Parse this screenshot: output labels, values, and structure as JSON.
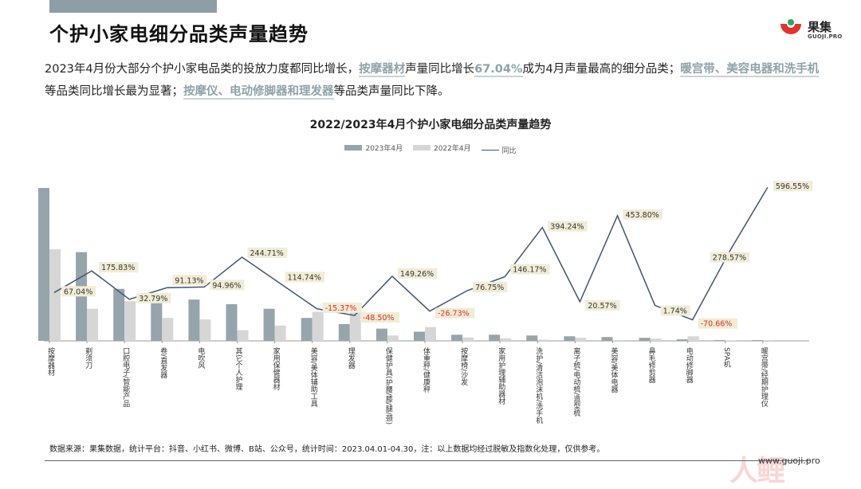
{
  "page": {
    "title": "个护小家电细分品类声量趋势",
    "summary": {
      "p1": "2023年4月份大部分个护小家电品类的投放力度都同比增长，",
      "h1": "按摩器材",
      "p2": "声量同比增长",
      "h2": "67.04%",
      "p3": "成为4月声量最高的细分品类；",
      "h3": "暖宫带、美容电器和洗手机",
      "p4": "等品类同比增长最为显著；",
      "h4": "按摩仪、电动修脚器和理发器",
      "p5": "等品类声量同比下降。"
    },
    "footer_note": "数据来源：果集数据，统计平台：抖音、小红书、微博、B站、公众号，统计时间：2023.04.01-04.30，注：以上数据均经过脱敏及指数化处理，仅供参考。",
    "website": "www.guoji.pro",
    "logo": {
      "cn": "果集",
      "en": "GUOJI.PRO"
    },
    "watermark": "人鲤",
    "colors": {
      "bar_2023": "#95a5ab",
      "bar_2022": "#d6d6d6",
      "line": "#3f5570",
      "label_bg": "#f1ecd5",
      "negative": "#d93025",
      "highlight": "#8ea2ab"
    }
  },
  "chart_data": {
    "type": "bar",
    "title": "2022/2023年4月个护小家电细分品类声量趋势",
    "legend_position": "top",
    "series": [
      {
        "name": "2023年4月",
        "type": "bar",
        "values": [
          100,
          58,
          34,
          25,
          27,
          24,
          21,
          15,
          11,
          8,
          6,
          4,
          4,
          3.5,
          3,
          2.5,
          2,
          1,
          0.5,
          0.5
        ]
      },
      {
        "name": "2022年4月",
        "type": "bar",
        "values": [
          60,
          21,
          26,
          15,
          14,
          7,
          10,
          19,
          20,
          3.5,
          9,
          2.2,
          1.6,
          0.8,
          2,
          0.5,
          1.5,
          3,
          0.2,
          0.1
        ]
      },
      {
        "name": "同比",
        "type": "line",
        "unit": "%",
        "values": [
          67.04,
          175.83,
          32.79,
          91.13,
          94.96,
          244.71,
          114.74,
          -15.37,
          -48.5,
          149.26,
          -26.73,
          76.75,
          146.17,
          394.24,
          20.57,
          453.8,
          1.74,
          -70.66,
          278.57,
          596.55
        ]
      }
    ],
    "categories": [
      "按摩器材",
      "剃须刀",
      "口腔电子/智能产品",
      "卷/直发器",
      "电吹风",
      "其它个人护理",
      "家用保健器材",
      "美容/美体辅助工具",
      "理发器",
      "保健护具(护腰/膝/腿/颈)",
      "体重秤/健康秤",
      "按摩椅/沙发",
      "家用护理辅助器材",
      "洗护/清洁泡沫机/洗手机",
      "离子梳/电动梳/造型梳",
      "美容/美体电器",
      "鼻毛修剪器",
      "电动修脚器",
      "SPA机",
      "暖宫带/经期护理仪"
    ],
    "labels": [
      "67.04%",
      "175.83%",
      "32.79%",
      "91.13%",
      "94.96%",
      "244.71%",
      "114.74%",
      "-15.37%",
      "-48.50%",
      "149.26%",
      "-26.73%",
      "76.75%",
      "146.17%",
      "394.24%",
      "20.57%",
      "453.80%",
      "1.74%",
      "-70.66%",
      "278.57%",
      "596.55%"
    ],
    "xlabel": "",
    "ylabel": "",
    "grid": false
  }
}
